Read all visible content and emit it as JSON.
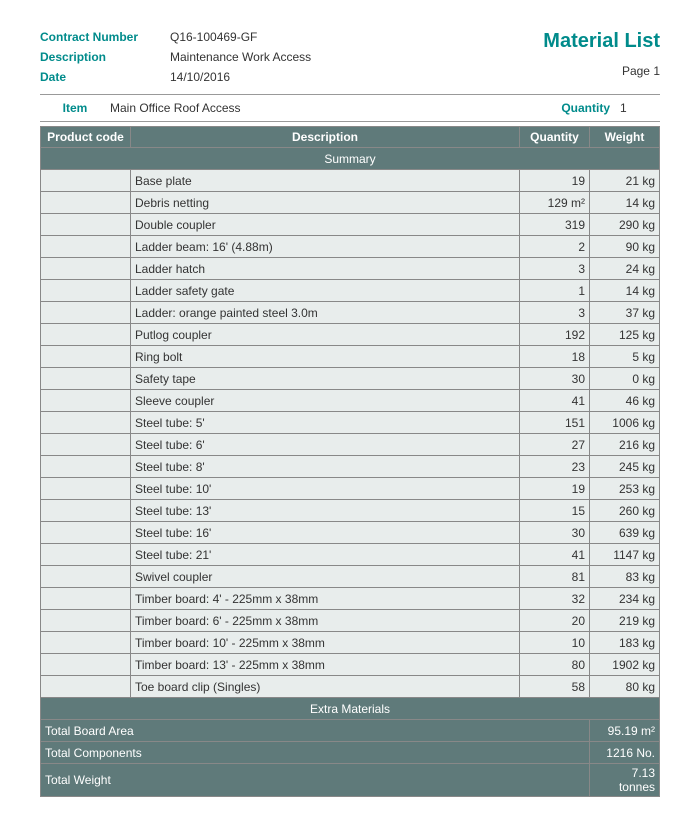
{
  "title": "Material List",
  "page": "Page 1",
  "header": {
    "contractLabel": "Contract Number",
    "contractValue": "Q16-100469-GF",
    "descLabel": "Description",
    "descValue": "Maintenance Work Access",
    "dateLabel": "Date",
    "dateValue": "14/10/2016"
  },
  "section": {
    "itemLabel": "Item",
    "itemValue": "Main Office Roof Access",
    "qtyLabel": "Quantity",
    "qtyValue": "1"
  },
  "columns": {
    "code": "Product code",
    "desc": "Description",
    "qty": "Quantity",
    "wt": "Weight"
  },
  "subheaders": {
    "summary": "Summary",
    "extra": "Extra Materials"
  },
  "rows": [
    {
      "code": "",
      "desc": "Base plate",
      "qty": "19",
      "wt": "21 kg"
    },
    {
      "code": "",
      "desc": "Debris netting",
      "qty": "129 m²",
      "wt": "14 kg"
    },
    {
      "code": "",
      "desc": "Double coupler",
      "qty": "319",
      "wt": "290 kg"
    },
    {
      "code": "",
      "desc": "Ladder beam: 16' (4.88m)",
      "qty": "2",
      "wt": "90 kg"
    },
    {
      "code": "",
      "desc": "Ladder hatch",
      "qty": "3",
      "wt": "24 kg"
    },
    {
      "code": "",
      "desc": "Ladder safety gate",
      "qty": "1",
      "wt": "14 kg"
    },
    {
      "code": "",
      "desc": "Ladder: orange painted steel 3.0m",
      "qty": "3",
      "wt": "37 kg"
    },
    {
      "code": "",
      "desc": "Putlog coupler",
      "qty": "192",
      "wt": "125 kg"
    },
    {
      "code": "",
      "desc": "Ring bolt",
      "qty": "18",
      "wt": "5 kg"
    },
    {
      "code": "",
      "desc": "Safety tape",
      "qty": "30",
      "wt": "0 kg"
    },
    {
      "code": "",
      "desc": "Sleeve coupler",
      "qty": "41",
      "wt": "46 kg"
    },
    {
      "code": "",
      "desc": "Steel tube:  5'",
      "qty": "151",
      "wt": "1006 kg"
    },
    {
      "code": "",
      "desc": "Steel tube:  6'",
      "qty": "27",
      "wt": "216 kg"
    },
    {
      "code": "",
      "desc": "Steel tube:  8'",
      "qty": "23",
      "wt": "245 kg"
    },
    {
      "code": "",
      "desc": "Steel tube: 10'",
      "qty": "19",
      "wt": "253 kg"
    },
    {
      "code": "",
      "desc": "Steel tube: 13'",
      "qty": "15",
      "wt": "260 kg"
    },
    {
      "code": "",
      "desc": "Steel tube: 16'",
      "qty": "30",
      "wt": "639 kg"
    },
    {
      "code": "",
      "desc": "Steel tube: 21'",
      "qty": "41",
      "wt": "1147 kg"
    },
    {
      "code": "",
      "desc": "Swivel coupler",
      "qty": "81",
      "wt": "83 kg"
    },
    {
      "code": "",
      "desc": "Timber board:  4' - 225mm x 38mm",
      "qty": "32",
      "wt": "234 kg"
    },
    {
      "code": "",
      "desc": "Timber board:  6' - 225mm x 38mm",
      "qty": "20",
      "wt": "219 kg"
    },
    {
      "code": "",
      "desc": "Timber board: 10' - 225mm x 38mm",
      "qty": "10",
      "wt": "183 kg"
    },
    {
      "code": "",
      "desc": "Timber board: 13' - 225mm x 38mm",
      "qty": "80",
      "wt": "1902 kg"
    },
    {
      "code": "",
      "desc": "Toe board clip (Singles)",
      "qty": "58",
      "wt": "80 kg"
    }
  ],
  "totals": [
    {
      "label": "Total Board Area",
      "value": "95.19 m²"
    },
    {
      "label": "Total Components",
      "value": "1216 No."
    },
    {
      "label": "Total Weight",
      "value": "7.13 tonnes"
    }
  ]
}
